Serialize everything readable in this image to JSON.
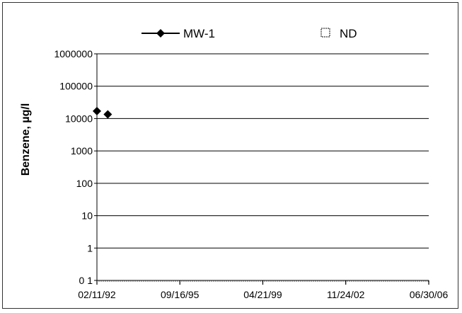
{
  "chart_data": {
    "type": "scatter",
    "title": "",
    "xlabel": "",
    "ylabel": "Benzene, µg/l",
    "y_scale": "log",
    "ylim": [
      0.1,
      1000000
    ],
    "y_ticks": [
      0.1,
      1,
      10,
      100,
      1000,
      10000,
      100000,
      1000000
    ],
    "y_tick_labels": [
      "0 1",
      "1",
      "10",
      "100",
      "1000",
      "10000",
      "100000",
      "1000000"
    ],
    "xlim": [
      "1992-02-11",
      "2006-06-30"
    ],
    "x_ticks": [
      "1992-02-11",
      "1995-09-16",
      "1999-04-21",
      "2002-11-24",
      "2006-06-30"
    ],
    "x_tick_labels": [
      "02/11/92",
      "09/16/95",
      "04/21/99",
      "11/24/02",
      "06/30/06"
    ],
    "grid": {
      "horizontal": true,
      "vertical": false
    },
    "legend_position": "top",
    "series": [
      {
        "name": "MW-1",
        "marker": "diamond",
        "line": true,
        "color": "#000000",
        "x": [
          "1992-02-11",
          "1992-08-01"
        ],
        "y": [
          17000,
          13500
        ]
      },
      {
        "name": "ND",
        "marker": "square-open",
        "line": false,
        "color": "#000000",
        "x": [],
        "y": []
      }
    ]
  }
}
